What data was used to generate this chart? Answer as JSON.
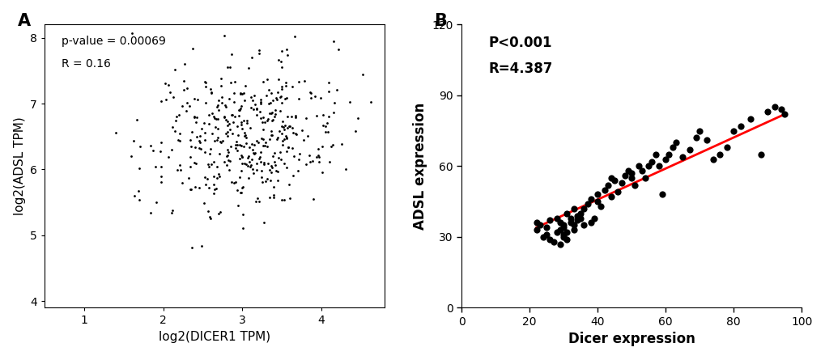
{
  "panel_A": {
    "label": "A",
    "xlabel": "log2(DICER1 TPM)",
    "ylabel": "log2(ADSL TPM)",
    "xlim": [
      0.5,
      4.8
    ],
    "ylim": [
      3.9,
      8.2
    ],
    "xticks": [
      1,
      2,
      3,
      4
    ],
    "yticks": [
      4,
      5,
      6,
      7,
      8
    ],
    "annotation_line1": "p-value = 0.00069",
    "annotation_line2": "R = 0.16",
    "seed": 42,
    "n_points": 450,
    "mean_x": 3.05,
    "std_x": 0.62,
    "mean_y": 6.5,
    "std_y": 0.58,
    "corr": 0.16,
    "dot_size": 4,
    "dot_color": "#000000"
  },
  "panel_B": {
    "label": "B",
    "xlabel": "Dicer expression",
    "ylabel": "ADSL expression",
    "xlim": [
      0,
      100
    ],
    "ylim": [
      0,
      120
    ],
    "xticks": [
      0,
      20,
      40,
      60,
      80,
      100
    ],
    "yticks": [
      0,
      30,
      60,
      90,
      120
    ],
    "annotation_line1": "P<0.001",
    "annotation_line2": "R=4.387",
    "line_color": "#ff0000",
    "line_x1": 22,
    "line_y1": 34,
    "line_x2": 95,
    "line_y2": 82,
    "dot_size": 35,
    "dot_color": "#000000",
    "scatter_x": [
      22,
      22,
      23,
      24,
      25,
      25,
      26,
      26,
      27,
      28,
      28,
      29,
      29,
      29,
      30,
      30,
      30,
      30,
      31,
      31,
      31,
      32,
      32,
      33,
      33,
      33,
      34,
      34,
      35,
      35,
      36,
      36,
      37,
      38,
      38,
      39,
      40,
      40,
      41,
      42,
      43,
      44,
      44,
      45,
      46,
      47,
      48,
      49,
      50,
      50,
      51,
      52,
      53,
      54,
      55,
      56,
      57,
      58,
      59,
      60,
      61,
      62,
      63,
      65,
      67,
      69,
      70,
      72,
      74,
      76,
      78,
      80,
      82,
      85,
      88,
      90,
      92,
      94,
      95
    ],
    "scatter_y": [
      33,
      36,
      35,
      30,
      31,
      34,
      29,
      37,
      28,
      32,
      38,
      27,
      33,
      36,
      30,
      31,
      34,
      35,
      29,
      32,
      40,
      38,
      36,
      33,
      35,
      42,
      39,
      37,
      38,
      40,
      35,
      42,
      44,
      36,
      46,
      38,
      45,
      48,
      43,
      50,
      52,
      47,
      55,
      54,
      49,
      53,
      56,
      58,
      55,
      57,
      52,
      60,
      58,
      55,
      60,
      62,
      65,
      60,
      48,
      63,
      65,
      68,
      70,
      64,
      67,
      72,
      75,
      71,
      63,
      65,
      68,
      75,
      77,
      80,
      65,
      83,
      85,
      84,
      82
    ]
  },
  "background_color": "#ffffff"
}
